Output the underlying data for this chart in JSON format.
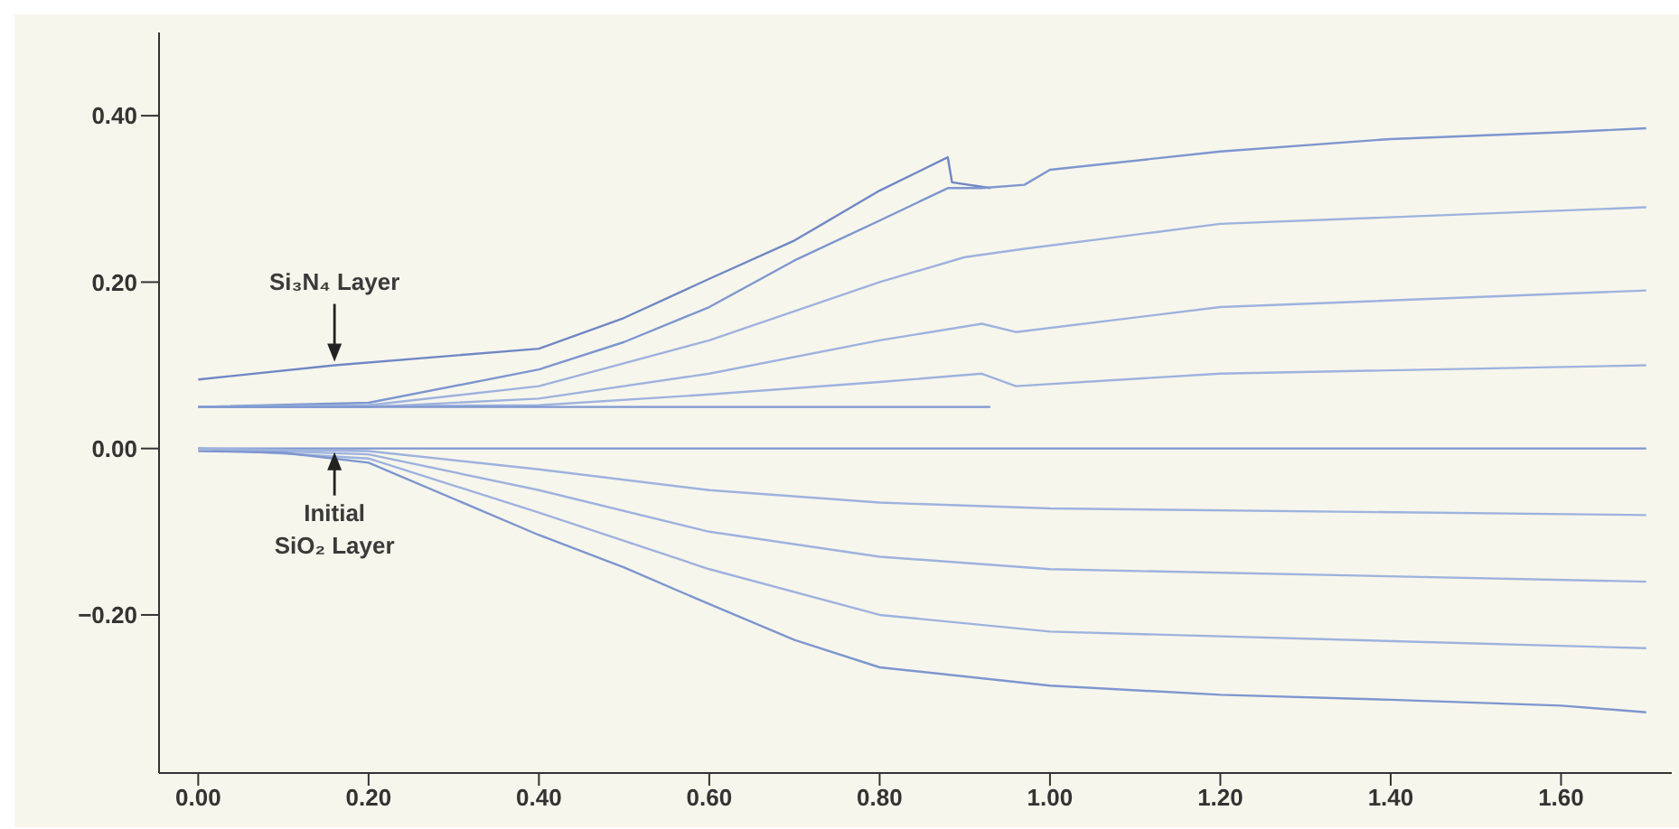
{
  "chart_data": {
    "type": "line",
    "xlim": [
      -0.046,
      1.73
    ],
    "ylim": [
      -0.39,
      0.5
    ],
    "xticks": [
      {
        "value": 0,
        "label": "0.00"
      },
      {
        "value": 0.2,
        "label": "0.20"
      },
      {
        "value": 0.4,
        "label": "0.40"
      },
      {
        "value": 0.6,
        "label": "0.60"
      },
      {
        "value": 0.8,
        "label": "0.80"
      },
      {
        "value": 1.0,
        "label": "1.00"
      },
      {
        "value": 1.2,
        "label": "1.20"
      },
      {
        "value": 1.4,
        "label": "1.40"
      },
      {
        "value": 1.6,
        "label": "1.60"
      }
    ],
    "yticks": [
      {
        "value": -0.2,
        "label": "−0.20"
      },
      {
        "value": 0,
        "label": "0.00"
      },
      {
        "value": 0.2,
        "label": "0.20"
      },
      {
        "value": 0.4,
        "label": "0.40"
      }
    ],
    "grid": false,
    "marker": "none",
    "line_style": "solid",
    "series": [
      {
        "color": "#6f87c4",
        "x": [
          0,
          0.16,
          0.4,
          0.5,
          0.6,
          0.7,
          0.8,
          0.88,
          0.885,
          0.93
        ],
        "values": [
          0.083,
          0.1,
          0.12,
          0.157,
          0.204,
          0.25,
          0.31,
          0.35,
          0.32,
          0.313
        ]
      },
      {
        "color": "#7d96cf",
        "x": [
          0,
          0.2,
          0.4,
          0.5,
          0.6,
          0.7,
          0.8,
          0.88,
          0.92,
          0.97,
          1.0,
          1.2,
          1.4,
          1.6,
          1.7
        ],
        "values": [
          0.05,
          0.055,
          0.095,
          0.128,
          0.17,
          0.226,
          0.274,
          0.313,
          0.313,
          0.317,
          0.335,
          0.357,
          0.372,
          0.38,
          0.385
        ]
      },
      {
        "color": "#9db2de",
        "x": [
          0,
          0.2,
          0.4,
          0.6,
          0.8,
          0.9,
          0.97,
          1.2,
          1.7
        ],
        "values": [
          0.05,
          0.052,
          0.075,
          0.13,
          0.2,
          0.23,
          0.24,
          0.27,
          0.29
        ]
      },
      {
        "color": "#9db2de",
        "x": [
          0,
          0.2,
          0.4,
          0.6,
          0.8,
          0.92,
          0.96,
          1.2,
          1.7
        ],
        "values": [
          0.05,
          0.05,
          0.06,
          0.09,
          0.13,
          0.15,
          0.14,
          0.17,
          0.19
        ]
      },
      {
        "color": "#9db2de",
        "x": [
          0,
          0.4,
          0.6,
          0.8,
          0.92,
          0.96,
          1.2,
          1.7
        ],
        "values": [
          0.05,
          0.052,
          0.065,
          0.08,
          0.09,
          0.075,
          0.09,
          0.1
        ]
      },
      {
        "color": "#7d96cf",
        "x": [
          0,
          0.93
        ],
        "values": [
          0.05,
          0.05
        ]
      },
      {
        "color": "#7d96cf",
        "x": [
          0,
          1.7
        ],
        "values": [
          0,
          0
        ]
      },
      {
        "color": "#9db2de",
        "x": [
          0,
          0.2,
          0.4,
          0.6,
          0.8,
          1.0,
          1.7
        ],
        "values": [
          0,
          -0.003,
          -0.025,
          -0.05,
          -0.065,
          -0.072,
          -0.08
        ]
      },
      {
        "color": "#9db2de",
        "x": [
          0,
          0.2,
          0.4,
          0.6,
          0.8,
          1.0,
          1.7
        ],
        "values": [
          0,
          -0.007,
          -0.05,
          -0.1,
          -0.13,
          -0.145,
          -0.16
        ]
      },
      {
        "color": "#9db2de",
        "x": [
          0,
          0.2,
          0.4,
          0.6,
          0.8,
          1.0,
          1.7
        ],
        "values": [
          0,
          -0.012,
          -0.077,
          -0.145,
          -0.2,
          -0.22,
          -0.24
        ]
      },
      {
        "color": "#7d96cf",
        "x": [
          0,
          0.1,
          0.2,
          0.4,
          0.5,
          0.6,
          0.7,
          0.8,
          1.0,
          1.2,
          1.4,
          1.6,
          1.7
        ],
        "values": [
          -0.003,
          -0.005,
          -0.017,
          -0.104,
          -0.143,
          -0.187,
          -0.23,
          -0.263,
          -0.285,
          -0.296,
          -0.302,
          -0.309,
          -0.317
        ]
      }
    ],
    "annotations": [
      {
        "text": "Si₃N₄ Layer",
        "x": 0.16,
        "y": 0.1
      },
      {
        "text": "Initial\nSiO₂ Layer",
        "x": 0.16,
        "y": 0
      }
    ]
  }
}
